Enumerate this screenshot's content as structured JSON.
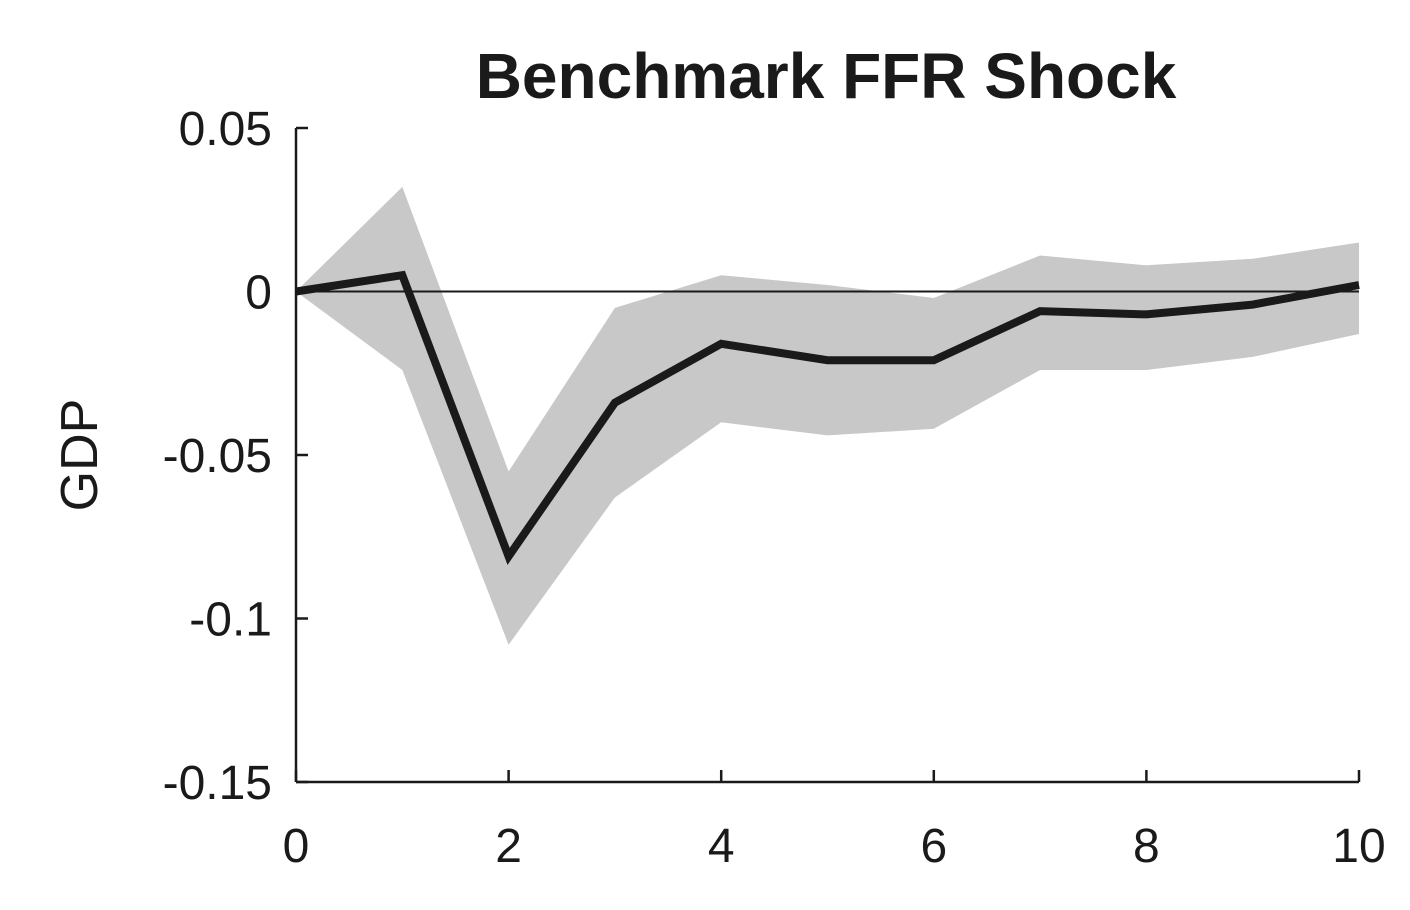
{
  "chart_data": {
    "type": "line",
    "title": "Benchmark FFR Shock",
    "ylabel": "GDP",
    "xlabel": "",
    "xlim": [
      0,
      10
    ],
    "ylim": [
      -0.15,
      0.05
    ],
    "xticks": [
      0,
      2,
      4,
      6,
      8,
      10
    ],
    "xtick_labels": [
      "0",
      "2",
      "4",
      "6",
      "8",
      "10"
    ],
    "yticks": [
      0.05,
      0,
      -0.05,
      -0.1,
      -0.15
    ],
    "ytick_labels": [
      "0.05",
      "0",
      "-0.05",
      "-0.1",
      "-0.15"
    ],
    "x": [
      0,
      1,
      2,
      3,
      4,
      5,
      6,
      7,
      8,
      9,
      10
    ],
    "series": [
      {
        "values": [
          0,
          0.005,
          -0.081,
          -0.034,
          -0.016,
          -0.021,
          -0.021,
          -0.006,
          -0.007,
          -0.004,
          0.002
        ]
      }
    ],
    "band": {
      "upper": [
        0,
        0.032,
        -0.055,
        -0.005,
        0.005,
        0.002,
        -0.002,
        0.011,
        0.008,
        0.01,
        0.015
      ],
      "lower": [
        0,
        -0.024,
        -0.108,
        -0.063,
        -0.04,
        -0.044,
        -0.042,
        -0.024,
        -0.024,
        -0.02,
        -0.013
      ]
    },
    "zero_line": true,
    "grid": false,
    "colors": {
      "line": "#1a1a1a",
      "band": "#c8c8c8",
      "axis": "#1a1a1a",
      "zero_line": "#1a1a1a"
    }
  }
}
